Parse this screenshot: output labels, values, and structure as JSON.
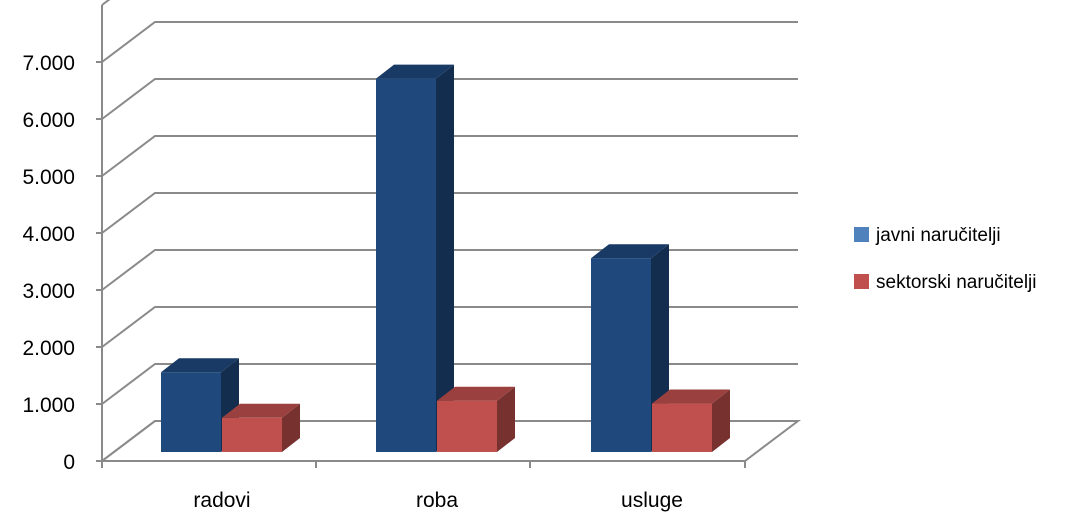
{
  "chart_data": {
    "type": "bar",
    "categories": [
      "radovi",
      "roba",
      "usluge"
    ],
    "series": [
      {
        "name": "javni naručitelji",
        "values": [
          1400,
          6550,
          3400
        ],
        "color": "#1F497D"
      },
      {
        "name": "sektorski naručitelji",
        "values": [
          600,
          900,
          850
        ],
        "color": "#C0504D"
      }
    ],
    "y_ticks": [
      "0",
      "1.000",
      "2.000",
      "3.000",
      "4.000",
      "5.000",
      "6.000",
      "7.000"
    ],
    "ylim": [
      0,
      7000
    ],
    "grid": true,
    "legend": "right",
    "style": "3d-column"
  }
}
